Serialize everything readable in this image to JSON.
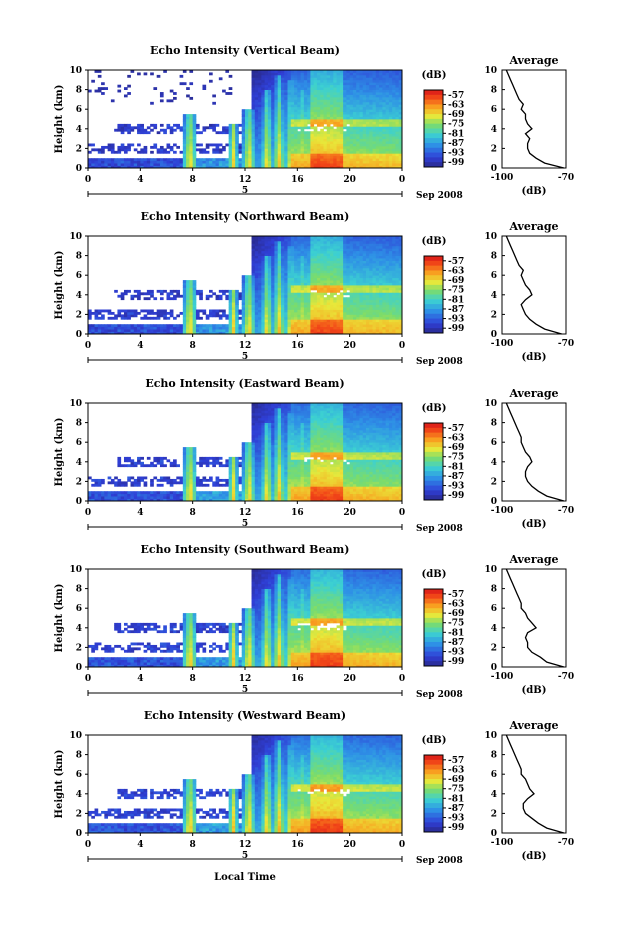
{
  "chart_data": {
    "type": "heatmap",
    "shared": {
      "xlabel": "Local Time",
      "x_ticks": [
        "0",
        "4",
        "8",
        "12",
        "16",
        "20",
        "0"
      ],
      "xlim": [
        0,
        24
      ],
      "date_label": "Sep 2008",
      "day_label": "5",
      "ylabel": "Height (km)",
      "y_ticks": [
        "0",
        "2",
        "4",
        "6",
        "8",
        "10"
      ],
      "ylim": [
        0,
        10
      ],
      "colorbar_unit": "(dB)",
      "colorbar_ticks": [
        "-57",
        "-63",
        "-69",
        "-75",
        "-81",
        "-87",
        "-93",
        "-99"
      ],
      "clim": [
        -102,
        -54
      ],
      "profile_title": "Average",
      "profile_xlabel": "(dB)",
      "profile_x_ticks": [
        "-100",
        "-70"
      ],
      "profile_xlim": [
        -100,
        -70
      ],
      "profile_y_ticks": [
        "0",
        "2",
        "4",
        "6",
        "8",
        "10"
      ]
    },
    "panels": [
      {
        "title": "Echo Intensity (Vertical Beam)",
        "average_profile": {
          "height_km": [
            0,
            0.5,
            1,
            1.5,
            2,
            2.5,
            3,
            3.5,
            4,
            4.5,
            5,
            5.5,
            6,
            6.5,
            7,
            7.5,
            8,
            8.5,
            9,
            9.5,
            10
          ],
          "db": [
            -71,
            -80,
            -84,
            -87,
            -88,
            -88,
            -87,
            -89,
            -86,
            -88,
            -89,
            -89,
            -91,
            -90,
            -92,
            -93,
            -94,
            -95,
            -96,
            -97,
            -98
          ]
        }
      },
      {
        "title": "Echo Intensity (Northward Beam)",
        "average_profile": {
          "height_km": [
            0,
            0.5,
            1,
            1.5,
            2,
            2.5,
            3,
            3.5,
            4,
            4.5,
            5,
            5.5,
            6,
            6.5,
            7,
            7.5,
            8,
            8.5,
            9,
            9.5,
            10
          ],
          "db": [
            -72,
            -80,
            -84,
            -87,
            -89,
            -90,
            -91,
            -89,
            -86,
            -87,
            -89,
            -90,
            -91,
            -90,
            -92,
            -93,
            -94,
            -95,
            -96,
            -97,
            -98
          ]
        }
      },
      {
        "title": "Echo Intensity (Eastward Beam)",
        "average_profile": {
          "height_km": [
            0,
            0.5,
            1,
            1.5,
            2,
            2.5,
            3,
            3.5,
            4,
            4.5,
            5,
            5.5,
            6,
            6.5,
            7,
            7.5,
            8,
            8.5,
            9,
            9.5,
            10
          ],
          "db": [
            -71,
            -79,
            -83,
            -86,
            -88,
            -89,
            -89,
            -88,
            -86,
            -87,
            -89,
            -90,
            -91,
            -91,
            -92,
            -93,
            -94,
            -95,
            -96,
            -97,
            -98
          ]
        }
      },
      {
        "title": "Echo Intensity (Southward Beam)",
        "average_profile": {
          "height_km": [
            0,
            0.5,
            1,
            1.5,
            2,
            2.5,
            3,
            3.5,
            4,
            4.5,
            5,
            5.5,
            6,
            6.5,
            7,
            7.5,
            8,
            8.5,
            9,
            9.5,
            10
          ],
          "db": [
            -71,
            -79,
            -82,
            -86,
            -88,
            -88,
            -89,
            -88,
            -84,
            -86,
            -88,
            -89,
            -91,
            -91,
            -92,
            -93,
            -94,
            -95,
            -96,
            -97,
            -98
          ]
        }
      },
      {
        "title": "Echo Intensity (Westward Beam)",
        "average_profile": {
          "height_km": [
            0,
            0.5,
            1,
            1.5,
            2,
            2.5,
            3,
            3.5,
            4,
            4.5,
            5,
            5.5,
            6,
            6.5,
            7,
            7.5,
            8,
            8.5,
            9,
            9.5,
            10
          ],
          "db": [
            -71,
            -79,
            -83,
            -86,
            -89,
            -90,
            -90,
            -88,
            -85,
            -87,
            -88,
            -89,
            -91,
            -91,
            -92,
            -93,
            -94,
            -95,
            -96,
            -97,
            -98
          ]
        }
      }
    ]
  }
}
